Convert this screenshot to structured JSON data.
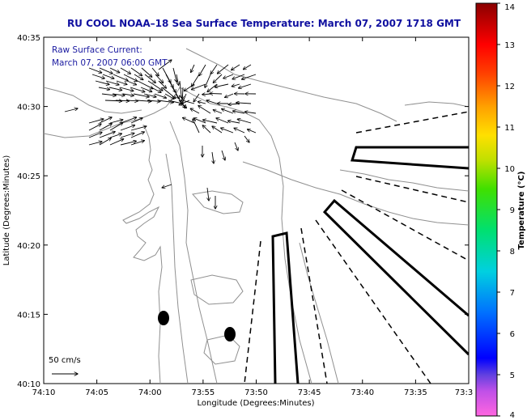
{
  "title": "RU COOL  NOAA–18  Sea Surface Temperature:  March 07, 2007 1718 GMT",
  "inset": {
    "line1": "Raw Surface Current:",
    "line2": "March 07, 2007 06:00 GMT"
  },
  "xlabel": "Longitude (Degrees:Minutes)",
  "ylabel": "Latitude (Degrees:Minutes)",
  "x_ticks": [
    "74:10",
    "74:05",
    "74:00",
    "73:55",
    "73:50",
    "73:45",
    "73:40",
    "73:35",
    "73:3"
  ],
  "y_ticks": [
    "40:35",
    "40:30",
    "40:25",
    "40:20",
    "40:15",
    "40:10"
  ],
  "colorbar": {
    "label": "Temperature (°C)",
    "min": 4,
    "max": 14,
    "ticks": [
      "4",
      "5",
      "6",
      "7",
      "8",
      "9",
      "10",
      "11",
      "12",
      "13",
      "14"
    ],
    "colors": [
      "#ff66e0",
      "#a040e0",
      "#0000ff",
      "#0080ff",
      "#00e0e0",
      "#00e060",
      "#80e000",
      "#ffe000",
      "#ff9000",
      "#ff2000",
      "#8a0000"
    ]
  },
  "scale_label": "50 cm/s",
  "colors": {
    "title": "#1010a0",
    "contour": "#909090",
    "vector": "#000000"
  }
}
